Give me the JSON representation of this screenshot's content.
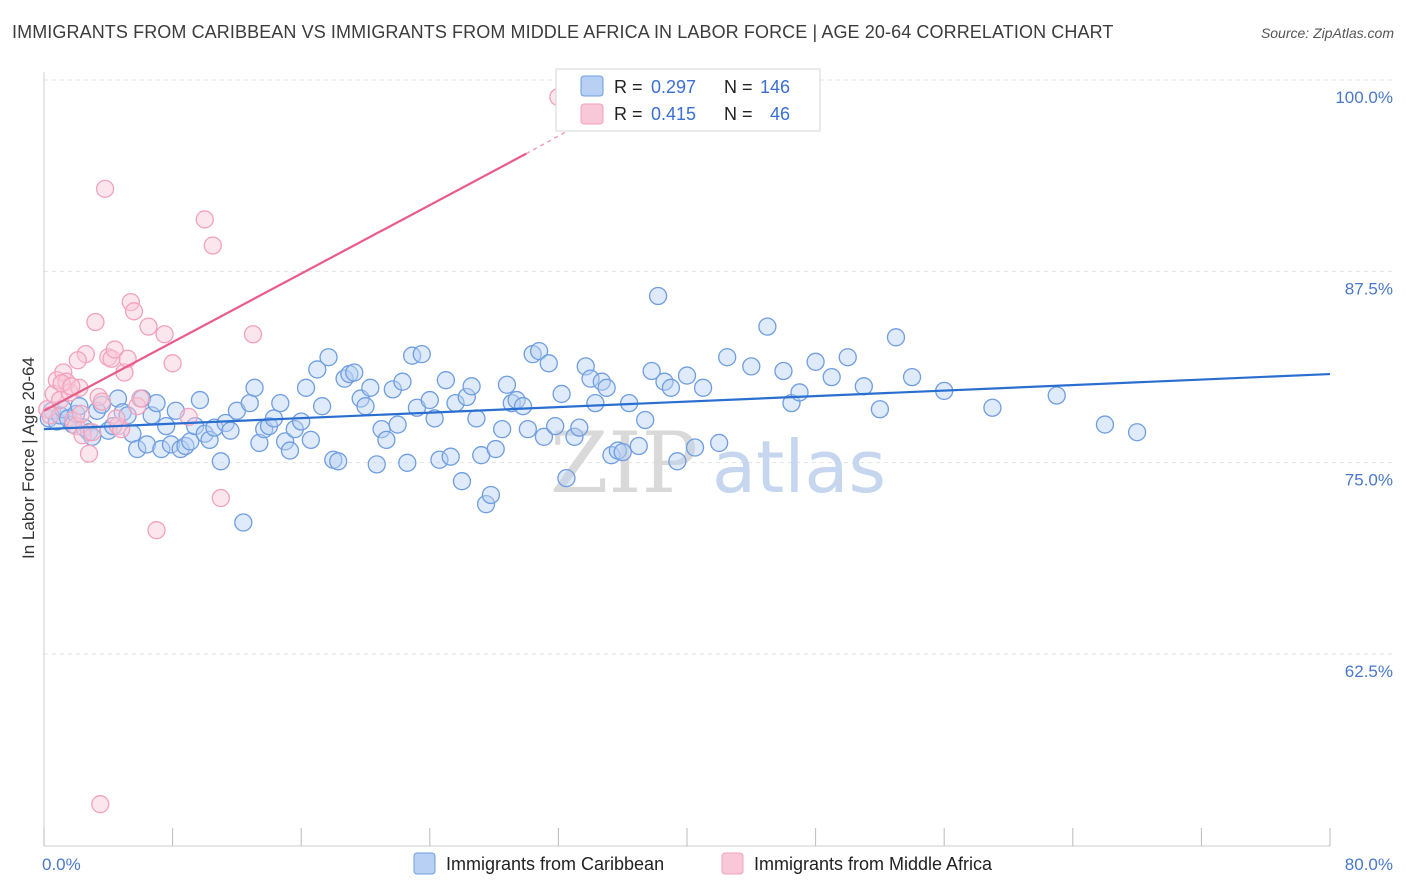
{
  "header": {
    "title": "IMMIGRANTS FROM CARIBBEAN VS IMMIGRANTS FROM MIDDLE AFRICA IN LABOR FORCE | AGE 20-64 CORRELATION CHART",
    "source": "Source: ZipAtlas.com"
  },
  "watermark": {
    "zip": "ZIP",
    "atlas": "atlas"
  },
  "legend": {
    "rows": [
      {
        "r_label": "R =",
        "r_value": "0.297",
        "n_label": "N =",
        "n_value": "146"
      },
      {
        "r_label": "R =",
        "r_value": "0.415",
        "n_label": "N =",
        "n_value": "46"
      }
    ]
  },
  "chart_data": {
    "type": "scatter",
    "title": "IMMIGRANTS FROM CARIBBEAN VS IMMIGRANTS FROM MIDDLE AFRICA IN LABOR FORCE | AGE 20-64 CORRELATION CHART",
    "xlabel": "",
    "ylabel": "In Labor Force | Age 20-64",
    "xlim": [
      0,
      80
    ],
    "ylim": [
      50,
      101
    ],
    "x_tick_labels": [
      "0.0%",
      "80.0%"
    ],
    "y_ticks": [
      {
        "value": 100,
        "label": "100.0%"
      },
      {
        "value": 87.5,
        "label": "87.5%"
      },
      {
        "value": 75,
        "label": "75.0%"
      },
      {
        "value": 62.5,
        "label": "62.5%"
      }
    ],
    "series": [
      {
        "name": "Immigrants from Caribbean",
        "color": "#6f9ee0",
        "line_color": "#2a6fd0",
        "trend": {
          "x0": 0,
          "y0": 78.3,
          "x1": 80,
          "y1": 81.9
        },
        "points": [
          [
            0.3,
            79.0
          ],
          [
            0.5,
            79.5
          ],
          [
            0.8,
            78.8
          ],
          [
            1.0,
            79.2
          ],
          [
            1.2,
            79.6
          ],
          [
            1.5,
            79.0
          ],
          [
            1.8,
            78.6
          ],
          [
            2.0,
            79.3
          ],
          [
            2.2,
            79.8
          ],
          [
            2.5,
            78.4
          ],
          [
            2.8,
            78.1
          ],
          [
            3.0,
            77.8
          ],
          [
            3.3,
            79.5
          ],
          [
            3.6,
            79.9
          ],
          [
            4.0,
            78.2
          ],
          [
            4.3,
            78.5
          ],
          [
            4.6,
            80.3
          ],
          [
            4.9,
            79.4
          ],
          [
            5.2,
            79.2
          ],
          [
            5.5,
            78.0
          ],
          [
            5.8,
            77.0
          ],
          [
            6.1,
            80.3
          ],
          [
            6.4,
            77.3
          ],
          [
            6.7,
            79.2
          ],
          [
            7.0,
            80.0
          ],
          [
            7.3,
            77.0
          ],
          [
            7.6,
            78.5
          ],
          [
            7.9,
            77.3
          ],
          [
            8.2,
            79.5
          ],
          [
            8.5,
            77.0
          ],
          [
            8.8,
            77.2
          ],
          [
            9.1,
            77.5
          ],
          [
            9.4,
            78.5
          ],
          [
            9.7,
            80.2
          ],
          [
            10.0,
            78.0
          ],
          [
            10.3,
            77.6
          ],
          [
            10.6,
            78.4
          ],
          [
            11.0,
            76.2
          ],
          [
            11.3,
            78.7
          ],
          [
            11.6,
            78.2
          ],
          [
            12.0,
            79.5
          ],
          [
            12.4,
            72.2
          ],
          [
            12.8,
            80.0
          ],
          [
            13.1,
            81.0
          ],
          [
            13.4,
            77.4
          ],
          [
            13.7,
            78.3
          ],
          [
            14.0,
            78.5
          ],
          [
            14.3,
            79.0
          ],
          [
            14.7,
            80.0
          ],
          [
            15.0,
            77.5
          ],
          [
            15.3,
            76.9
          ],
          [
            15.6,
            78.3
          ],
          [
            16.0,
            78.8
          ],
          [
            16.3,
            81.0
          ],
          [
            16.6,
            77.6
          ],
          [
            17.0,
            82.2
          ],
          [
            17.3,
            79.8
          ],
          [
            17.7,
            83.0
          ],
          [
            18.0,
            76.3
          ],
          [
            18.3,
            76.2
          ],
          [
            18.7,
            81.6
          ],
          [
            19.0,
            81.9
          ],
          [
            19.3,
            82.0
          ],
          [
            19.7,
            80.3
          ],
          [
            20.0,
            79.8
          ],
          [
            20.3,
            81.0
          ],
          [
            20.7,
            76.0
          ],
          [
            21.0,
            78.3
          ],
          [
            21.3,
            77.6
          ],
          [
            21.7,
            80.9
          ],
          [
            22.0,
            78.6
          ],
          [
            22.3,
            81.4
          ],
          [
            22.6,
            76.1
          ],
          [
            22.9,
            83.1
          ],
          [
            23.2,
            79.7
          ],
          [
            23.5,
            83.2
          ],
          [
            24.0,
            80.2
          ],
          [
            24.3,
            79.0
          ],
          [
            24.6,
            76.3
          ],
          [
            25.0,
            81.5
          ],
          [
            25.3,
            76.5
          ],
          [
            25.6,
            80.0
          ],
          [
            26.0,
            74.9
          ],
          [
            26.3,
            80.4
          ],
          [
            26.6,
            81.1
          ],
          [
            26.9,
            79.0
          ],
          [
            27.2,
            76.6
          ],
          [
            27.5,
            73.4
          ],
          [
            27.8,
            74.0
          ],
          [
            28.1,
            77.0
          ],
          [
            28.5,
            78.3
          ],
          [
            28.8,
            81.2
          ],
          [
            29.1,
            80.0
          ],
          [
            29.4,
            80.2
          ],
          [
            29.8,
            79.8
          ],
          [
            30.1,
            78.3
          ],
          [
            30.4,
            83.2
          ],
          [
            30.8,
            83.4
          ],
          [
            31.1,
            77.8
          ],
          [
            31.4,
            82.6
          ],
          [
            31.8,
            78.5
          ],
          [
            32.2,
            80.6
          ],
          [
            32.5,
            75.1
          ],
          [
            33.0,
            77.8
          ],
          [
            33.3,
            78.4
          ],
          [
            33.7,
            82.4
          ],
          [
            34.0,
            81.6
          ],
          [
            34.3,
            80.0
          ],
          [
            34.7,
            81.4
          ],
          [
            35.0,
            81.0
          ],
          [
            35.3,
            76.6
          ],
          [
            35.7,
            76.9
          ],
          [
            36.0,
            76.8
          ],
          [
            36.4,
            80.0
          ],
          [
            37.0,
            77.2
          ],
          [
            37.4,
            78.9
          ],
          [
            37.8,
            82.1
          ],
          [
            38.2,
            87.0
          ],
          [
            38.6,
            81.4
          ],
          [
            39.0,
            81.0
          ],
          [
            39.4,
            76.2
          ],
          [
            40.0,
            81.8
          ],
          [
            40.5,
            77.1
          ],
          [
            41.0,
            81.0
          ],
          [
            42.0,
            77.4
          ],
          [
            42.5,
            83.0
          ],
          [
            44.0,
            82.4
          ],
          [
            45.0,
            85.0
          ],
          [
            46.0,
            82.1
          ],
          [
            46.5,
            80.0
          ],
          [
            47.0,
            80.7
          ],
          [
            48.0,
            82.7
          ],
          [
            49.0,
            81.7
          ],
          [
            50.0,
            83.0
          ],
          [
            51.0,
            81.1
          ],
          [
            52.0,
            79.6
          ],
          [
            53.0,
            84.3
          ],
          [
            54.0,
            81.7
          ],
          [
            56.0,
            80.8
          ],
          [
            59.0,
            79.7
          ],
          [
            63.0,
            80.5
          ],
          [
            66.0,
            78.6
          ],
          [
            68.0,
            78.1
          ]
        ]
      },
      {
        "name": "Immigrants from Middle Africa",
        "color": "#f2a2bc",
        "line_color": "#e85c8a",
        "trend": {
          "x0": 0,
          "y0": 79.5,
          "x1": 30,
          "y1": 96.3
        },
        "trend_dashed_to": {
          "x": 34,
          "y": 98.6
        },
        "points": [
          [
            0.2,
            79.6
          ],
          [
            0.4,
            79.2
          ],
          [
            0.6,
            80.6
          ],
          [
            0.8,
            81.5
          ],
          [
            1.0,
            80.2
          ],
          [
            1.2,
            82.0
          ],
          [
            1.4,
            81.4
          ],
          [
            1.6,
            80.7
          ],
          [
            1.8,
            78.9
          ],
          [
            2.0,
            78.5
          ],
          [
            2.2,
            81.0
          ],
          [
            2.4,
            77.9
          ],
          [
            2.6,
            83.2
          ],
          [
            2.8,
            76.7
          ],
          [
            3.0,
            78.1
          ],
          [
            3.2,
            85.3
          ],
          [
            3.4,
            80.4
          ],
          [
            3.6,
            80.1
          ],
          [
            3.8,
            94.0
          ],
          [
            4.0,
            83.0
          ],
          [
            4.2,
            82.9
          ],
          [
            4.4,
            83.5
          ],
          [
            4.6,
            78.5
          ],
          [
            4.8,
            78.3
          ],
          [
            5.0,
            82.0
          ],
          [
            5.2,
            82.9
          ],
          [
            5.4,
            86.6
          ],
          [
            5.6,
            86.0
          ],
          [
            5.8,
            79.8
          ],
          [
            6.0,
            80.3
          ],
          [
            6.5,
            85.0
          ],
          [
            7.0,
            71.7
          ],
          [
            7.5,
            84.5
          ],
          [
            8.0,
            82.6
          ],
          [
            9.0,
            79.1
          ],
          [
            10.0,
            92.0
          ],
          [
            10.5,
            90.3
          ],
          [
            11.0,
            73.8
          ],
          [
            13.0,
            84.5
          ],
          [
            3.5,
            53.8
          ],
          [
            4.5,
            79.0
          ],
          [
            2.1,
            82.8
          ],
          [
            1.1,
            81.3
          ],
          [
            1.7,
            81.1
          ],
          [
            2.3,
            79.3
          ],
          [
            32.0,
            100.0
          ]
        ]
      }
    ]
  },
  "bottom_legend": {
    "items": [
      {
        "label": "Immigrants from Caribbean",
        "color": "#6f9ee0"
      },
      {
        "label": "Immigrants from Middle Africa",
        "color": "#f2a2bc"
      }
    ]
  }
}
